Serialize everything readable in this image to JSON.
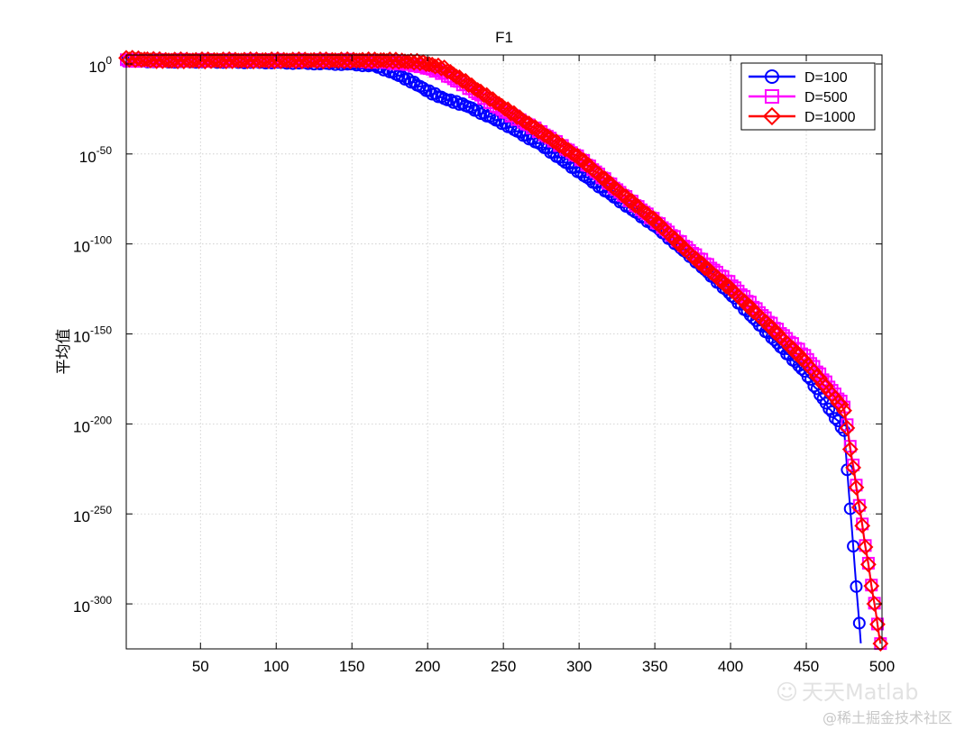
{
  "chart_data": {
    "type": "line",
    "title": "F1",
    "xlabel": "",
    "ylabel": "平均值",
    "yscale": "log",
    "xlim": [
      1,
      500
    ],
    "ylim_exponent": [
      -325,
      5
    ],
    "xticks": [
      50,
      100,
      150,
      200,
      250,
      300,
      350,
      400,
      450,
      500
    ],
    "yticks": [
      {
        "base": "10",
        "exp": "0",
        "value_exp": 0
      },
      {
        "base": "10",
        "exp": "-50",
        "value_exp": -50
      },
      {
        "base": "10",
        "exp": "-100",
        "value_exp": -100
      },
      {
        "base": "10",
        "exp": "-150",
        "value_exp": -150
      },
      {
        "base": "10",
        "exp": "-200",
        "value_exp": -200
      },
      {
        "base": "10",
        "exp": "-250",
        "value_exp": -250
      },
      {
        "base": "10",
        "exp": "-300",
        "value_exp": -300
      }
    ],
    "grid": true,
    "legend_position": "top-right",
    "series": [
      {
        "name": "D=100",
        "color": "#0000ff",
        "marker": "circle",
        "x": [
          1,
          25,
          50,
          100,
          150,
          165,
          175,
          190,
          200,
          210,
          225,
          250,
          275,
          300,
          325,
          350,
          375,
          400,
          425,
          450,
          475,
          486
        ],
        "log10_y": [
          2,
          1.5,
          1.5,
          1.0,
          0,
          -1,
          -4,
          -10,
          -15,
          -19,
          -23,
          -33,
          -45,
          -60,
          -75,
          -90,
          -108,
          -128,
          -150,
          -172,
          -204,
          -322
        ]
      },
      {
        "name": "D=500",
        "color": "#ff00ff",
        "marker": "square",
        "x": [
          1,
          25,
          50,
          100,
          150,
          175,
          195,
          210,
          225,
          250,
          275,
          300,
          325,
          350,
          375,
          400,
          425,
          450,
          475,
          499
        ],
        "log10_y": [
          2,
          2,
          2,
          2,
          2,
          1,
          -1,
          -5,
          -12,
          -26,
          -38,
          -52,
          -70,
          -87,
          -105,
          -122,
          -143,
          -163,
          -190,
          -322
        ]
      },
      {
        "name": "D=1000",
        "color": "#ff0000",
        "marker": "diamond",
        "x": [
          1,
          25,
          50,
          100,
          150,
          175,
          195,
          210,
          225,
          250,
          275,
          300,
          325,
          350,
          375,
          400,
          425,
          450,
          475,
          499
        ],
        "log10_y": [
          3,
          2,
          2,
          2,
          2,
          2,
          1,
          -2,
          -10,
          -24,
          -38,
          -52,
          -70,
          -87,
          -107,
          -125,
          -145,
          -166,
          -192,
          -322
        ]
      }
    ]
  },
  "watermark": {
    "line1": "天天Matlab",
    "line2": "@稀土掘金技术社区",
    "logo": "☺"
  }
}
